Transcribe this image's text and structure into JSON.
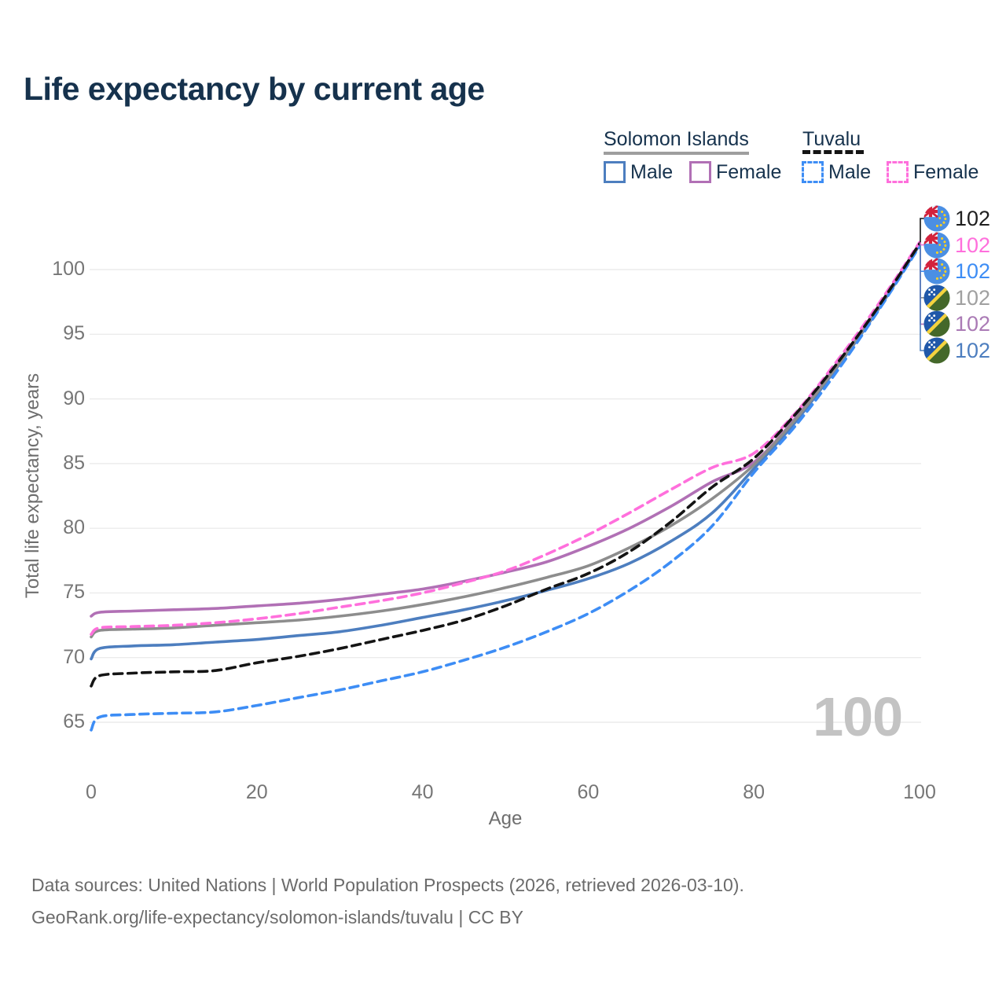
{
  "header": {
    "title": "Life expectancy by current age"
  },
  "legend": {
    "groups": [
      {
        "label": "Solomon Islands",
        "rule_color": "#9e9e9e",
        "rule_style": "solid"
      },
      {
        "label": "Tuvalu",
        "rule_color": "#141414",
        "rule_style": "dashed"
      }
    ],
    "items": [
      {
        "label": "Male",
        "color": "#4d7ebf",
        "dash": false,
        "group": "Solomon Islands"
      },
      {
        "label": "Female",
        "color": "#b170b5",
        "dash": false,
        "group": "Solomon Islands"
      },
      {
        "label": "Male",
        "color": "#3d8df5",
        "dash": true,
        "group": "Tuvalu"
      },
      {
        "label": "Female",
        "color": "#ff6fdc",
        "dash": true,
        "group": "Tuvalu"
      }
    ]
  },
  "axes": {
    "x": {
      "label": "Age",
      "ticks": [
        0,
        20,
        40,
        60,
        80,
        100
      ]
    },
    "y": {
      "label": "Total life expectancy, years",
      "ticks": [
        65,
        70,
        75,
        80,
        85,
        90,
        95,
        100
      ]
    }
  },
  "watermark": {
    "text": "100"
  },
  "footer": {
    "line1": "Data sources: United Nations | World Population Prospects (2026, retrieved 2026-03-10).",
    "line2": "GeoRank.org/life-expectancy/solomon-islands/tuvalu | CC BY"
  },
  "chart_data": {
    "type": "line",
    "title": "Life expectancy by current age",
    "xlabel": "Age",
    "ylabel": "Total life expectancy, years",
    "x_range": [
      0,
      100
    ],
    "y_ticks": [
      65,
      70,
      75,
      80,
      85,
      90,
      95,
      100
    ],
    "grid": true,
    "legend_position": "top-right",
    "ages": [
      0,
      1,
      5,
      10,
      15,
      20,
      25,
      30,
      35,
      40,
      45,
      50,
      55,
      60,
      65,
      70,
      75,
      80,
      85,
      90,
      95,
      100
    ],
    "series": [
      {
        "id": "tuvalu-both",
        "name": "Tuvalu (both sexes)",
        "country": "Tuvalu",
        "sex": "both",
        "line_style": "dashed",
        "color": "#141414",
        "label_color": "#1f1f1f",
        "flag": "tuvalu",
        "end_label": "102",
        "values": [
          67.8,
          68.6,
          68.8,
          68.9,
          69.0,
          69.6,
          70.1,
          70.7,
          71.4,
          72.1,
          72.9,
          74.0,
          75.3,
          76.5,
          78.2,
          80.5,
          83.2,
          85.4,
          88.8,
          92.7,
          97.1,
          102.0
        ]
      },
      {
        "id": "tuvalu-female",
        "name": "Tuvalu Female",
        "country": "Tuvalu",
        "sex": "female",
        "line_style": "dashed",
        "color": "#ff6fdc",
        "label_color": "#ff6fdc",
        "flag": "tuvalu",
        "end_label": "102",
        "values": [
          71.8,
          72.3,
          72.4,
          72.5,
          72.7,
          73.0,
          73.4,
          73.9,
          74.4,
          75.0,
          75.8,
          76.7,
          78.0,
          79.5,
          81.2,
          83.0,
          84.7,
          85.8,
          88.9,
          92.9,
          97.3,
          102.1
        ]
      },
      {
        "id": "tuvalu-male",
        "name": "Tuvalu Male",
        "country": "Tuvalu",
        "sex": "male",
        "line_style": "dashed",
        "color": "#3d8df5",
        "label_color": "#3d8df5",
        "flag": "tuvalu",
        "end_label": "102",
        "values": [
          64.4,
          65.4,
          65.6,
          65.7,
          65.8,
          66.3,
          66.9,
          67.5,
          68.2,
          68.9,
          69.8,
          70.8,
          72.0,
          73.4,
          75.2,
          77.4,
          80.2,
          84.3,
          87.9,
          92.1,
          96.8,
          101.8
        ]
      },
      {
        "id": "solomon-both",
        "name": "Solomon Islands (both sexes)",
        "country": "Solomon Islands",
        "sex": "both",
        "line_style": "solid",
        "color": "#8d8d8d",
        "label_color": "#a0a0a0",
        "flag": "solomon",
        "end_label": "102",
        "values": [
          71.6,
          72.1,
          72.2,
          72.3,
          72.5,
          72.7,
          72.9,
          73.2,
          73.6,
          74.1,
          74.7,
          75.4,
          76.2,
          77.1,
          78.5,
          80.2,
          82.3,
          84.9,
          88.4,
          92.5,
          97.0,
          102.0
        ]
      },
      {
        "id": "solomon-female",
        "name": "Solomon Islands Female",
        "country": "Solomon Islands",
        "sex": "female",
        "line_style": "solid",
        "color": "#b170b5",
        "label_color": "#aa7ab5",
        "flag": "solomon",
        "end_label": "102",
        "values": [
          73.2,
          73.5,
          73.6,
          73.7,
          73.8,
          74.0,
          74.2,
          74.5,
          74.9,
          75.3,
          75.9,
          76.6,
          77.4,
          78.6,
          80.0,
          81.7,
          83.6,
          85.1,
          88.5,
          92.6,
          97.1,
          102.0
        ]
      },
      {
        "id": "solomon-male",
        "name": "Solomon Islands Male",
        "country": "Solomon Islands",
        "sex": "male",
        "line_style": "solid",
        "color": "#4d7ebf",
        "label_color": "#4d7ebf",
        "flag": "solomon",
        "end_label": "102",
        "values": [
          69.9,
          70.7,
          70.9,
          71.0,
          71.2,
          71.4,
          71.7,
          72.0,
          72.5,
          73.1,
          73.7,
          74.4,
          75.2,
          76.1,
          77.3,
          79.0,
          81.2,
          84.6,
          88.2,
          92.4,
          96.9,
          101.9
        ]
      }
    ]
  }
}
